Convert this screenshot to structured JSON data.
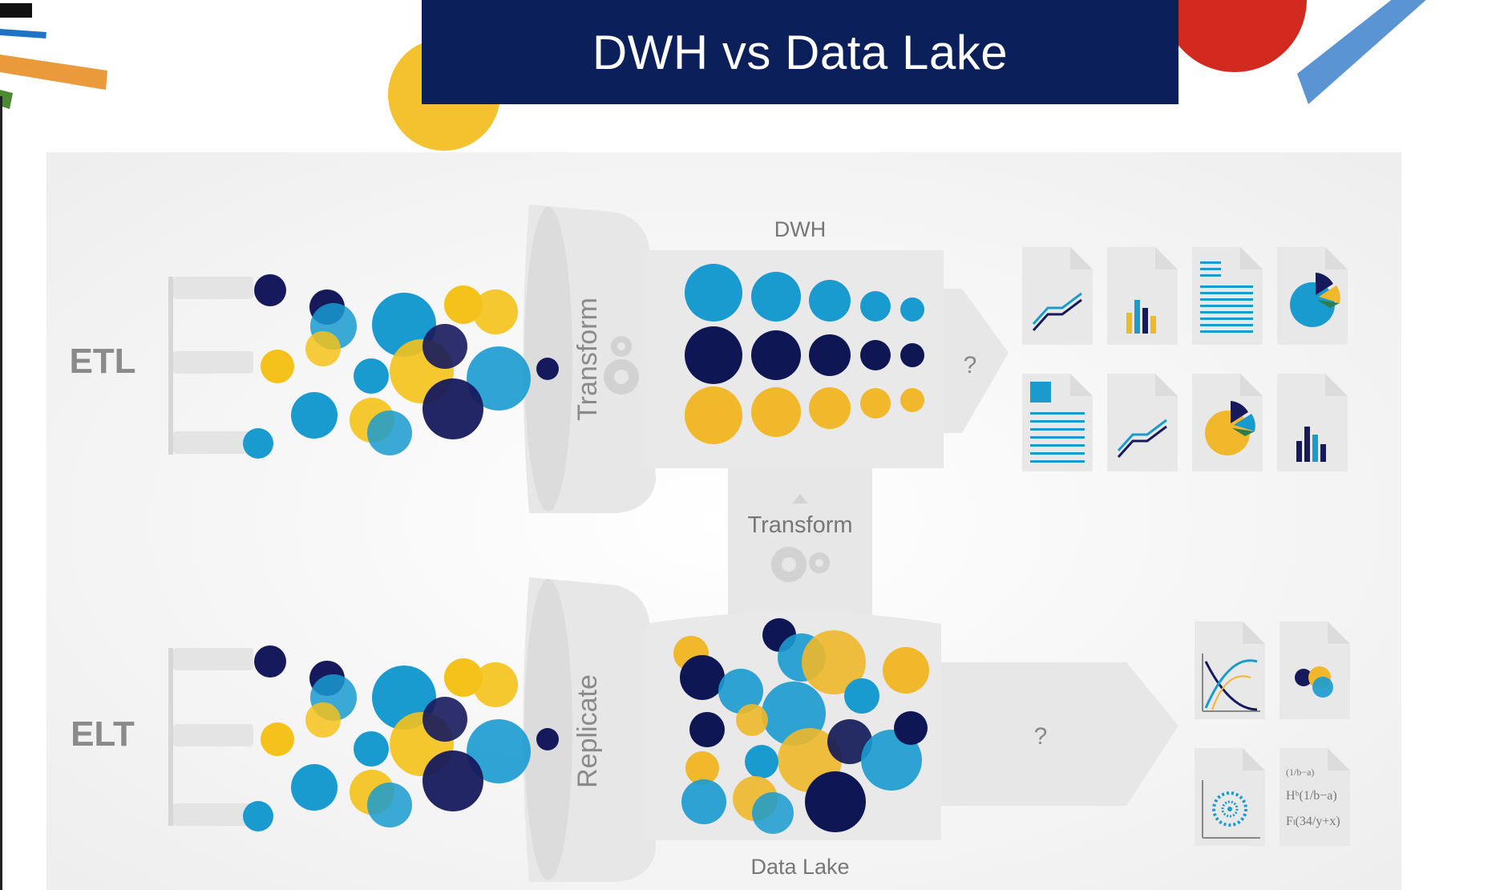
{
  "title": "DWH vs Data Lake",
  "rows": {
    "etl": {
      "label": "ETL",
      "funnel_label": "Transform",
      "store_label": "DWH",
      "output_label": "?"
    },
    "elt": {
      "label": "ELT",
      "funnel_label": "Replicate",
      "store_label": "Data Lake",
      "output_label": "?"
    }
  },
  "middle_connector_label": "Transform",
  "formula_icon": {
    "line1": "(1/b−a)",
    "line2": "Hᵇ(1/b−a)",
    "line3": "Fₗ(34/y+x)"
  },
  "colors": {
    "navy": "#161a5c",
    "blue": "#1a9bd0",
    "yellow": "#f4c21a",
    "banner": "#0b1f5a",
    "panel": "#f1f1f1",
    "shape_gray": "#e7e7e7",
    "label_gray": "#888888"
  },
  "icons": [
    "line-chart-doc-icon",
    "bar-chart-doc-icon",
    "text-doc-icon",
    "pie-chart-doc-icon",
    "report-doc-icon",
    "line-chart-doc-icon",
    "pie-chart-doc-icon",
    "bar-chart-doc-icon",
    "curves-plot-doc-icon",
    "venn-bubble-doc-icon",
    "radial-chart-doc-icon",
    "formula-doc-icon",
    "gears-icon"
  ]
}
